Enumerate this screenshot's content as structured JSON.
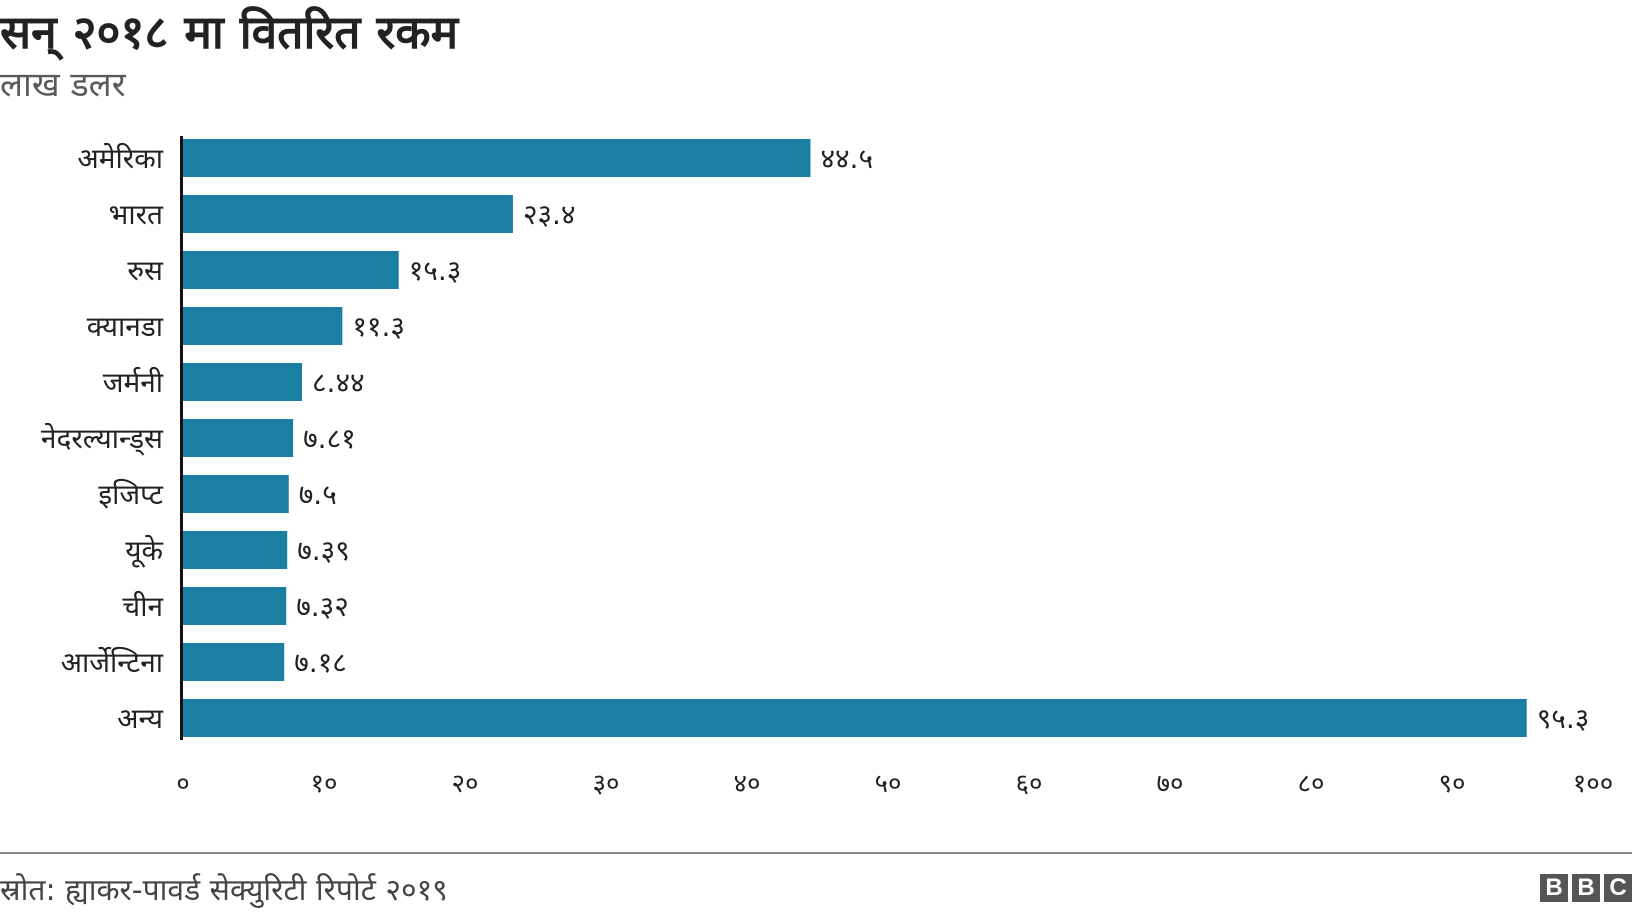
{
  "colors": {
    "bar": "#1a7fa3",
    "axis": "#111111",
    "text": "#222222",
    "subtitle": "#5a5a5a"
  },
  "header": {
    "title": "सन् २०१८ मा वितरित रकम",
    "subtitle": "लाख डलर"
  },
  "footer": {
    "source": "स्रोत: ह्याकर-पावर्ड सेक्युरिटी रिपोर्ट २०१९",
    "logo_letters": [
      "B",
      "B",
      "C"
    ]
  },
  "chart_data": {
    "type": "bar",
    "orientation": "horizontal",
    "title": "सन् २०१८ मा वितरित रकम",
    "subtitle": "लाख डलर",
    "xlabel": "",
    "ylabel": "",
    "xlim": [
      0,
      100
    ],
    "grid": false,
    "categories": [
      "अमेरिका",
      "भारत",
      "रुस",
      "क्यानडा",
      "जर्मनी",
      "नेदरल्यान्ड्स",
      "इजिप्ट",
      "यूके",
      "चीन",
      "आर्जेन्टिना",
      "अन्य"
    ],
    "values": [
      44.5,
      23.4,
      15.3,
      11.3,
      8.44,
      7.81,
      7.5,
      7.39,
      7.32,
      7.18,
      95.3
    ],
    "value_labels": [
      "४४.५",
      "२३.४",
      "१५.३",
      "११.३",
      "८.४४",
      "७.८१",
      "७.५",
      "७.३९",
      "७.३२",
      "७.१८",
      "९५.३"
    ],
    "ticks": [
      0,
      10,
      20,
      30,
      40,
      50,
      60,
      70,
      80,
      90,
      100
    ],
    "tick_labels": [
      "०",
      "१०",
      "२०",
      "३०",
      "४०",
      "५०",
      "६०",
      "७०",
      "८०",
      "९०",
      "१००"
    ]
  }
}
